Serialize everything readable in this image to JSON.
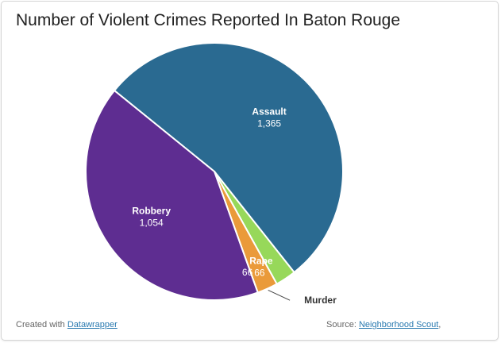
{
  "chart_data": {
    "type": "pie",
    "title": "Number of Violent Crimes Reported In Baton Rouge",
    "slices": [
      {
        "label": "Assault",
        "value": 1365,
        "value_label": "1,365",
        "color": "#2a6a91"
      },
      {
        "label": "Rape",
        "value": 66,
        "value_label": "66",
        "color": "#97d85a"
      },
      {
        "label": "Murder",
        "value": 66,
        "value_label": "66",
        "color": "#ea9a3a"
      },
      {
        "label": "Robbery",
        "value": 1054,
        "value_label": "1,054",
        "color": "#5e2d91"
      }
    ]
  },
  "footer": {
    "created_prefix": "Created with",
    "created_link": "Datawrapper",
    "source_prefix": "Source:",
    "source_link": "Neighborhood Scout",
    "source_suffix": ","
  }
}
